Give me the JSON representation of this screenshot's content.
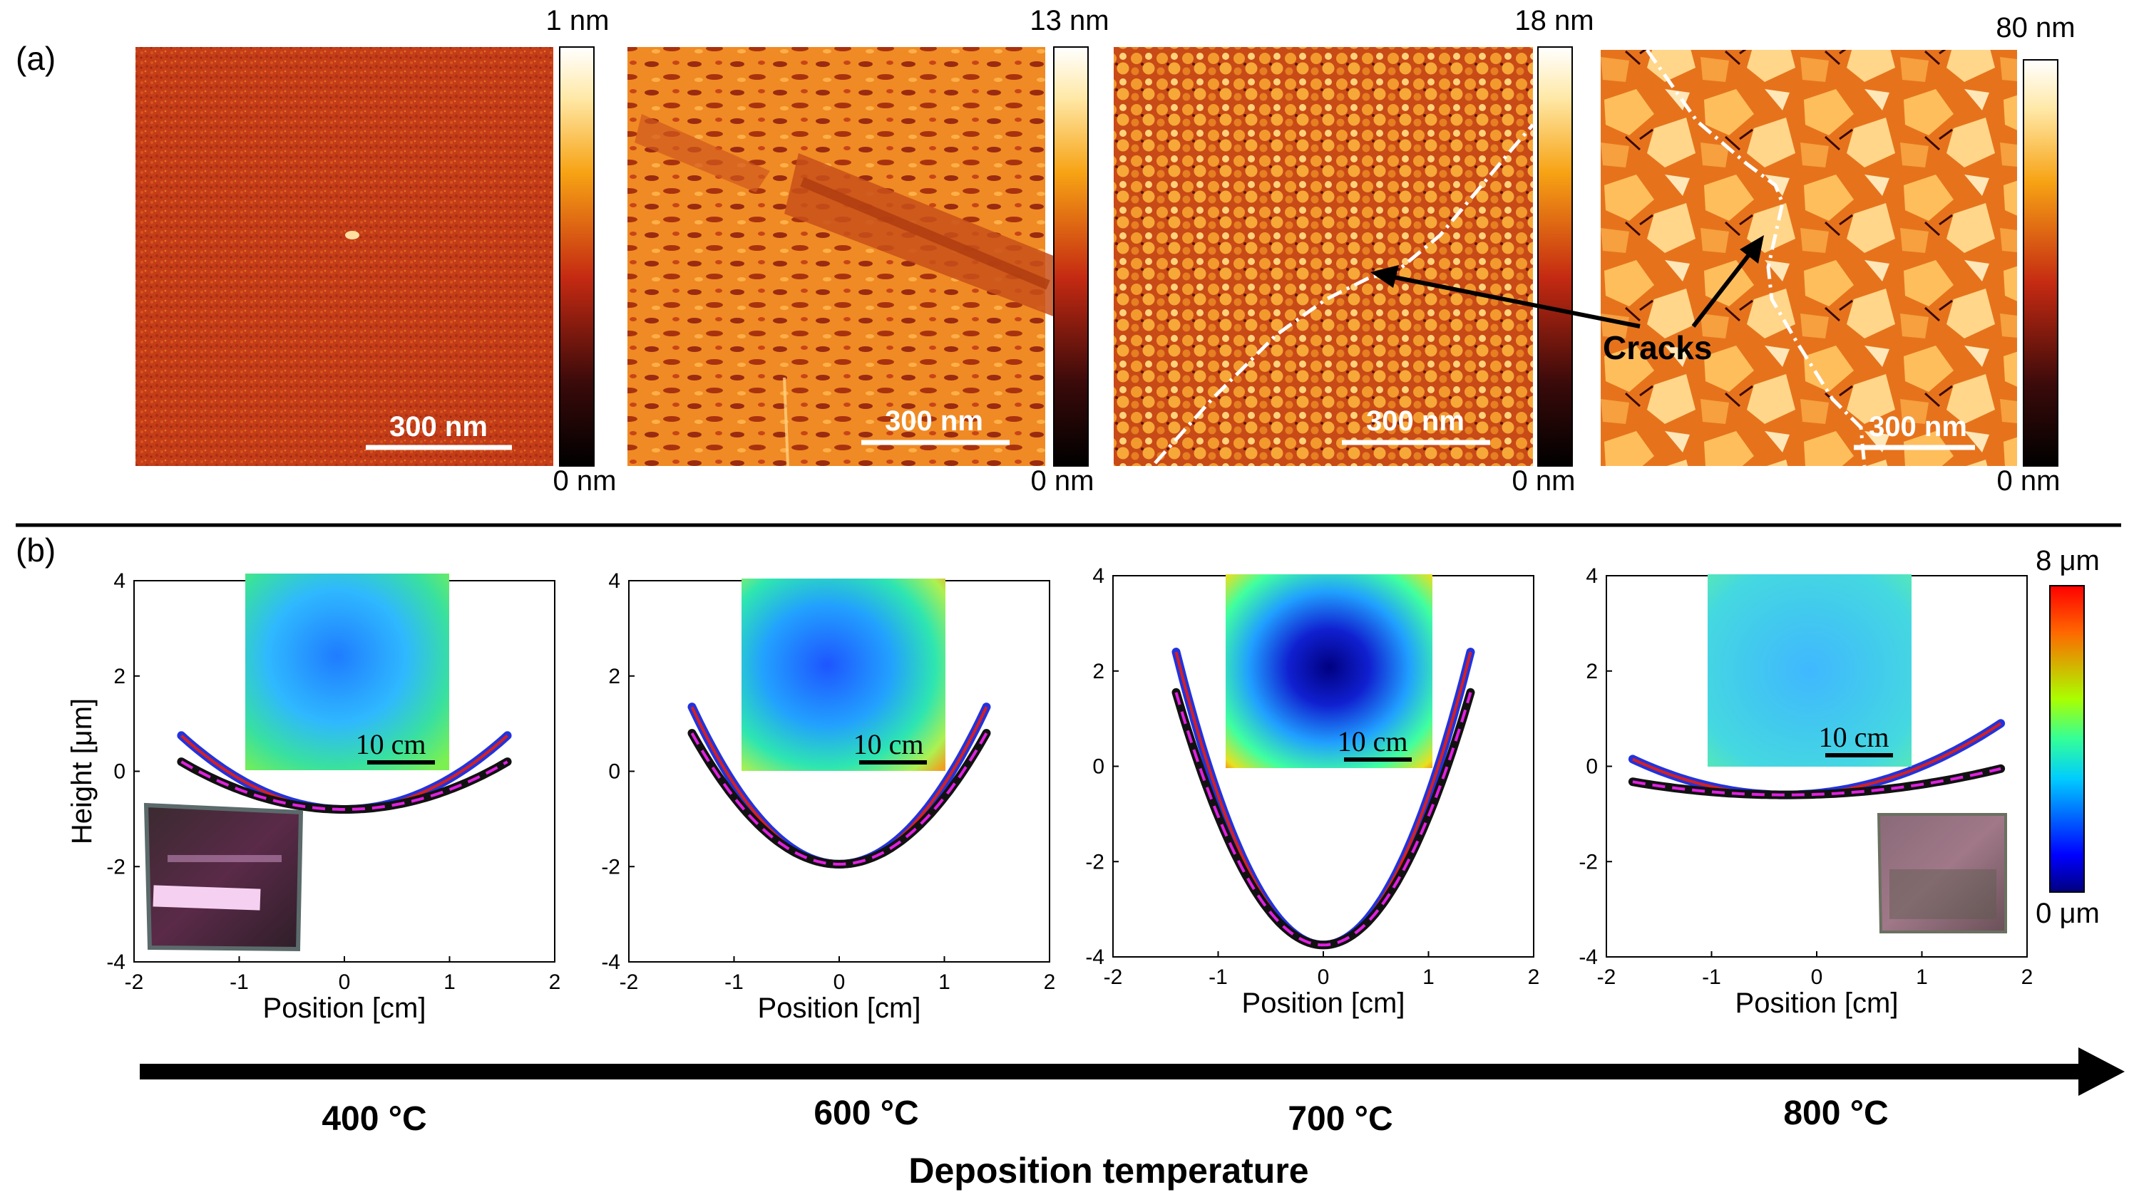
{
  "figure": {
    "panel_a": {
      "label": "(a)",
      "scalebar_text": "300 nm",
      "images": [
        {
          "name": "afm-400C",
          "cmax": "1 nm",
          "cmin": "0 nm"
        },
        {
          "name": "afm-600C",
          "cmax": "13 nm",
          "cmin": "0 nm"
        },
        {
          "name": "afm-700C",
          "cmax": "18 nm",
          "cmin": "0 nm"
        },
        {
          "name": "afm-800C",
          "cmax": "80 nm",
          "cmin": "0 nm"
        }
      ],
      "annotation": "Cracks"
    },
    "panel_b": {
      "label": "(b)",
      "xlabel": "Position [cm]",
      "ylabel": "Height [μm]",
      "inset_scalebar": "10 cm",
      "colorbar_max": "8 μm",
      "colorbar_min": "0 μm"
    },
    "temperatures": [
      "400 °C",
      "600 °C",
      "700 °C",
      "800 °C"
    ],
    "axis_title": "Deposition temperature"
  },
  "chart_data": [
    {
      "type": "line",
      "title": "400 °C",
      "xlabel": "Position [cm]",
      "ylabel": "Height [μm]",
      "xlim": [
        -2,
        2
      ],
      "ylim": [
        -4,
        4
      ],
      "xticks": [
        "-2",
        "-1",
        "0",
        "1",
        "2"
      ],
      "yticks": [
        "-4",
        "-2",
        "0",
        "2",
        "4"
      ],
      "series": [
        {
          "name": "upper profile",
          "x_range": [
            -1.55,
            1.55
          ],
          "vertex": [
            0,
            -0.8
          ],
          "edge_height": 0.75
        },
        {
          "name": "lower profile",
          "x_range": [
            -1.55,
            1.55
          ],
          "vertex": [
            0,
            -0.8
          ],
          "edge_height": 0.2
        }
      ]
    },
    {
      "type": "line",
      "title": "600 °C",
      "xlabel": "Position [cm]",
      "ylabel": "Height [μm]",
      "xlim": [
        -2,
        2
      ],
      "ylim": [
        -4,
        4
      ],
      "xticks": [
        "-2",
        "-1",
        "0",
        "1",
        "2"
      ],
      "yticks": [
        "-4",
        "-2",
        "0",
        "2",
        "4"
      ],
      "series": [
        {
          "name": "upper profile",
          "x_range": [
            -1.4,
            1.4
          ],
          "vertex": [
            0,
            -1.95
          ],
          "edge_height": 1.35
        },
        {
          "name": "lower profile",
          "x_range": [
            -1.4,
            1.4
          ],
          "vertex": [
            0,
            -1.95
          ],
          "edge_height": 0.8
        }
      ]
    },
    {
      "type": "line",
      "title": "700 °C",
      "xlabel": "Position [cm]",
      "ylabel": "Height [μm]",
      "xlim": [
        -2,
        2
      ],
      "ylim": [
        -4,
        4
      ],
      "xticks": [
        "-2",
        "-1",
        "0",
        "1",
        "2"
      ],
      "yticks": [
        "-4",
        "-2",
        "0",
        "2",
        "4"
      ],
      "series": [
        {
          "name": "upper profile",
          "x_range": [
            -1.4,
            1.4
          ],
          "vertex": [
            0,
            -3.75
          ],
          "edge_height": 2.4
        },
        {
          "name": "lower profile",
          "x_range": [
            -1.4,
            1.4
          ],
          "vertex": [
            0,
            -3.75
          ],
          "edge_height": 1.55
        }
      ]
    },
    {
      "type": "line",
      "title": "800 °C",
      "xlabel": "Position [cm]",
      "ylabel": "Height [μm]",
      "xlim": [
        -2,
        2
      ],
      "ylim": [
        -4,
        4
      ],
      "xticks": [
        "-2",
        "-1",
        "0",
        "1",
        "2"
      ],
      "yticks": [
        "-4",
        "-2",
        "0",
        "2",
        "4"
      ],
      "series": [
        {
          "name": "upper profile",
          "x_range": [
            -1.75,
            1.75
          ],
          "vertex": [
            -0.3,
            -0.6
          ],
          "edge_height": 0.9
        },
        {
          "name": "lower profile",
          "x_range": [
            -1.75,
            1.75
          ],
          "vertex": [
            -0.3,
            -0.6
          ],
          "edge_height": -0.05
        }
      ]
    }
  ],
  "colors": {
    "profile_blue": "#2233dd",
    "profile_black": "#111111",
    "fit_magenta": "#e020e0",
    "fit_red": "#d62020"
  }
}
